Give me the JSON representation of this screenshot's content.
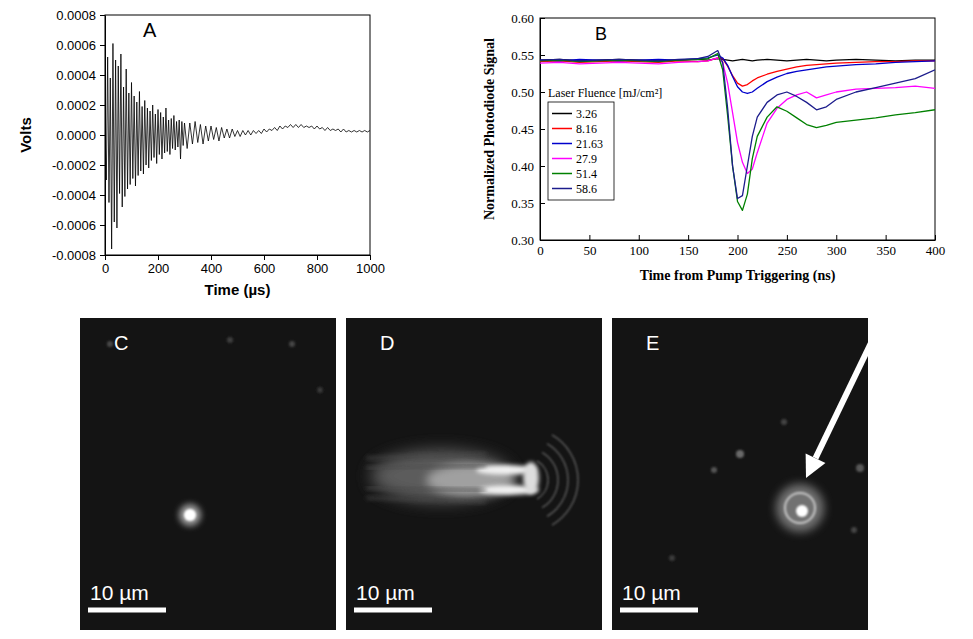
{
  "chart_data": [
    {
      "type": "line",
      "annotations": [
        "A"
      ],
      "xlabel": "Time (µs)",
      "ylabel": "Volts",
      "color": "#000000",
      "x": [
        0,
        5,
        10,
        15,
        20,
        25,
        30,
        35,
        40,
        45,
        50,
        55,
        60,
        65,
        70,
        75,
        80,
        85,
        90,
        95,
        100,
        105,
        110,
        115,
        120,
        125,
        130,
        135,
        140,
        145,
        150,
        155,
        160,
        165,
        170,
        175,
        180,
        185,
        190,
        195,
        200,
        205,
        210,
        215,
        220,
        225,
        230,
        235,
        240,
        245,
        250,
        255,
        260,
        265,
        270,
        275,
        280,
        285,
        290,
        295,
        300,
        310,
        320,
        330,
        340,
        350,
        360,
        370,
        380,
        390,
        400,
        410,
        420,
        430,
        440,
        450,
        460,
        470,
        480,
        490,
        500,
        510,
        520,
        530,
        540,
        550,
        560,
        570,
        580,
        590,
        600,
        610,
        620,
        630,
        640,
        650,
        660,
        670,
        680,
        690,
        700,
        710,
        720,
        730,
        740,
        750,
        760,
        770,
        780,
        790,
        800,
        810,
        820,
        830,
        840,
        850,
        860,
        870,
        880,
        890,
        900,
        910,
        920,
        930,
        940,
        950,
        960,
        970,
        980,
        990,
        1000
      ],
      "values": [
        5e-05,
        -0.0003,
        0.00052,
        -0.00045,
        0.00038,
        -0.00076,
        0.00061,
        -0.00058,
        0.0005,
        -0.00062,
        0.00046,
        -0.00039,
        0.00054,
        -0.00048,
        0.00032,
        -0.00041,
        0.00044,
        -0.00036,
        0.00028,
        -0.00033,
        0.00035,
        -0.00029,
        0.00026,
        -0.00034,
        0.00022,
        -0.00027,
        0.00029,
        -0.00024,
        0.00019,
        -0.00026,
        0.00023,
        -0.0002,
        0.00018,
        -0.00022,
        0.00016,
        -0.00017,
        0.0002,
        -0.00015,
        0.00014,
        -0.00019,
        0.00017,
        -0.00013,
        0.00015,
        -0.00016,
        0.00012,
        -0.00012,
        0.00018,
        -0.00011,
        0.0001,
        -0.00013,
        0.00011,
        -9e-05,
        0.00013,
        -0.0001,
        9e-05,
        -8e-05,
        0.0001,
        -0.00016,
        9e-05,
        -7e-05,
        8e-05,
        -9e-05,
        8e-05,
        -6e-05,
        9e-05,
        -5e-05,
        7e-05,
        -6e-05,
        6e-05,
        -4e-05,
        6e-05,
        -3e-05,
        5e-05,
        -4e-05,
        5e-05,
        -2e-05,
        4e-05,
        -2e-05,
        4e-05,
        -1e-05,
        3e-05,
        -1e-05,
        3e-05,
        0.0,
        3e-05,
        0.0,
        3e-05,
        1e-05,
        3e-05,
        1e-05,
        4e-05,
        2e-05,
        4e-05,
        3e-05,
        5e-05,
        3e-05,
        6e-05,
        4e-05,
        6e-05,
        5e-05,
        7e-05,
        5e-05,
        7e-05,
        5e-05,
        7e-05,
        5e-05,
        6e-05,
        5e-05,
        6e-05,
        4e-05,
        6e-05,
        4e-05,
        5e-05,
        3e-05,
        5e-05,
        3e-05,
        4e-05,
        3e-05,
        4e-05,
        2e-05,
        4e-05,
        2e-05,
        3e-05,
        2e-05,
        3e-05,
        2e-05,
        3e-05,
        2e-05,
        3e-05,
        2e-05,
        3e-05
      ],
      "xlim": [
        0,
        1000
      ],
      "xticks": [
        0,
        200,
        400,
        600,
        800,
        1000
      ],
      "ylim": [
        -0.0008,
        0.0008
      ],
      "yticks": [
        -0.0008,
        -0.0006,
        -0.0004,
        -0.0002,
        {
          "value": 0,
          "label": "0.0000"
        },
        0.0002,
        0.0004,
        0.0006,
        0.0008
      ],
      "grid": false
    },
    {
      "type": "line",
      "annotations": [
        "B"
      ],
      "xlabel": "Time from Pump Triggering (ns)",
      "ylabel": "Normalized Photodiode Signal",
      "legend_title": "Laser Fluence [mJ/cm²]",
      "legend": "lower left",
      "x": [
        0,
        20,
        40,
        60,
        80,
        100,
        120,
        140,
        160,
        170,
        180,
        185,
        190,
        195,
        200,
        205,
        210,
        215,
        220,
        230,
        240,
        250,
        260,
        270,
        280,
        290,
        300,
        320,
        340,
        360,
        380,
        400
      ],
      "series": [
        {
          "name": "3.26",
          "color": "#000000",
          "values": [
            0.543,
            0.544,
            0.542,
            0.543,
            0.544,
            0.543,
            0.542,
            0.543,
            0.544,
            0.543,
            0.545,
            0.544,
            0.543,
            0.542,
            0.543,
            0.544,
            0.543,
            0.542,
            0.543,
            0.544,
            0.543,
            0.542,
            0.543,
            0.544,
            0.543,
            0.542,
            0.543,
            0.544,
            0.543,
            0.542,
            0.543,
            0.543
          ]
        },
        {
          "name": "8.16",
          "color": "#ff0000",
          "values": [
            0.541,
            0.542,
            0.54,
            0.541,
            0.542,
            0.541,
            0.54,
            0.542,
            0.541,
            0.542,
            0.546,
            0.545,
            0.535,
            0.522,
            0.512,
            0.508,
            0.51,
            0.515,
            0.519,
            0.524,
            0.528,
            0.531,
            0.534,
            0.536,
            0.537,
            0.538,
            0.539,
            0.54,
            0.541,
            0.541,
            0.542,
            0.542
          ]
        },
        {
          "name": "21.63",
          "color": "#0000cc",
          "values": [
            0.543,
            0.542,
            0.544,
            0.543,
            0.542,
            0.543,
            0.544,
            0.543,
            0.545,
            0.546,
            0.55,
            0.546,
            0.536,
            0.521,
            0.507,
            0.5,
            0.498,
            0.5,
            0.505,
            0.514,
            0.52,
            0.525,
            0.528,
            0.53,
            0.532,
            0.534,
            0.535,
            0.537,
            0.538,
            0.54,
            0.541,
            0.542
          ]
        },
        {
          "name": "27.9",
          "color": "#ff00ff",
          "values": [
            0.539,
            0.54,
            0.538,
            0.539,
            0.54,
            0.539,
            0.538,
            0.54,
            0.541,
            0.542,
            0.546,
            0.54,
            0.512,
            0.472,
            0.432,
            0.405,
            0.39,
            0.396,
            0.418,
            0.458,
            0.478,
            0.49,
            0.496,
            0.5,
            0.492,
            0.496,
            0.5,
            0.504,
            0.505,
            0.506,
            0.508,
            0.505
          ]
        },
        {
          "name": "51.4",
          "color": "#008000",
          "values": [
            0.542,
            0.543,
            0.541,
            0.542,
            0.543,
            0.542,
            0.541,
            0.543,
            0.544,
            0.545,
            0.552,
            0.53,
            0.468,
            0.4,
            0.352,
            0.34,
            0.362,
            0.41,
            0.44,
            0.466,
            0.48,
            0.474,
            0.465,
            0.456,
            0.452,
            0.455,
            0.459,
            0.462,
            0.465,
            0.469,
            0.472,
            0.476
          ]
        },
        {
          "name": "58.6",
          "color": "#1c1c8c",
          "values": [
            0.543,
            0.544,
            0.542,
            0.543,
            0.544,
            0.543,
            0.542,
            0.544,
            0.545,
            0.548,
            0.556,
            0.54,
            0.478,
            0.4,
            0.356,
            0.36,
            0.4,
            0.44,
            0.466,
            0.486,
            0.496,
            0.5,
            0.494,
            0.486,
            0.476,
            0.48,
            0.49,
            0.5,
            0.506,
            0.512,
            0.518,
            0.53
          ]
        }
      ],
      "xlim": [
        0,
        400
      ],
      "xticks": [
        0,
        50,
        100,
        150,
        200,
        250,
        300,
        350,
        400
      ],
      "ylim": [
        0.3,
        0.6
      ],
      "yticks": [
        {
          "value": 0.3,
          "label": "0.30"
        },
        0.35,
        {
          "value": 0.4,
          "label": "0.40"
        },
        0.45,
        {
          "value": 0.5,
          "label": "0.50"
        },
        0.55,
        {
          "value": 0.6,
          "label": "0.60"
        }
      ],
      "grid": false
    }
  ],
  "images": [
    {
      "label": "C",
      "scale_bar": "10 µm"
    },
    {
      "label": "D",
      "scale_bar": "10 µm"
    },
    {
      "label": "E",
      "scale_bar": "10 µm"
    }
  ]
}
